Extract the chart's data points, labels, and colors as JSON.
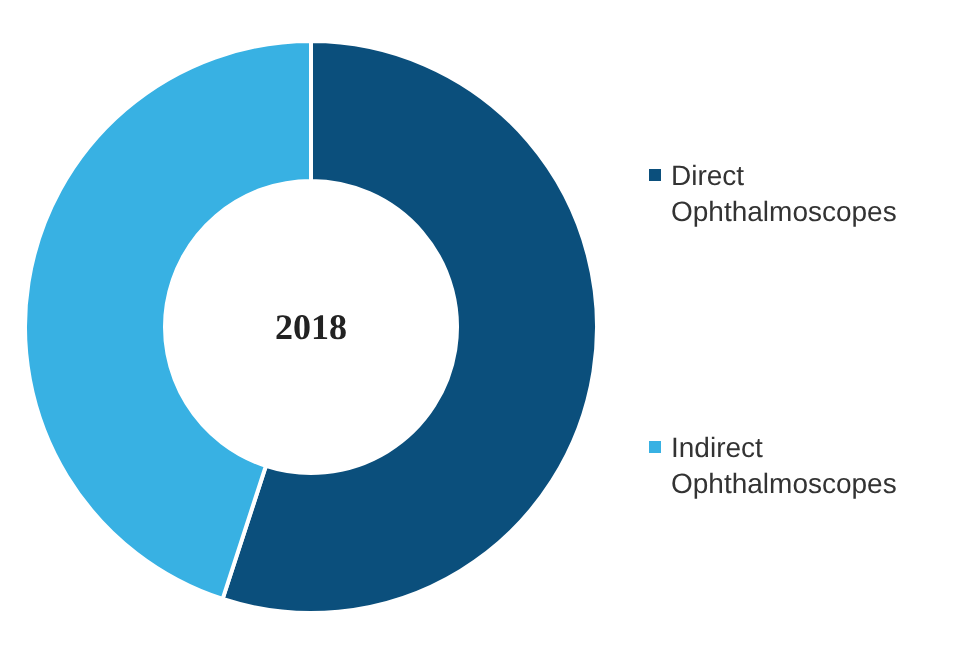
{
  "chart_data": {
    "type": "donut",
    "title": "2018",
    "categories": [
      "Direct Ophthalmoscopes",
      "Indirect Ophthalmoscopes"
    ],
    "values": [
      55,
      45
    ],
    "colors": [
      "#0b4f7c",
      "#38b1e3"
    ],
    "legend": "right"
  }
}
